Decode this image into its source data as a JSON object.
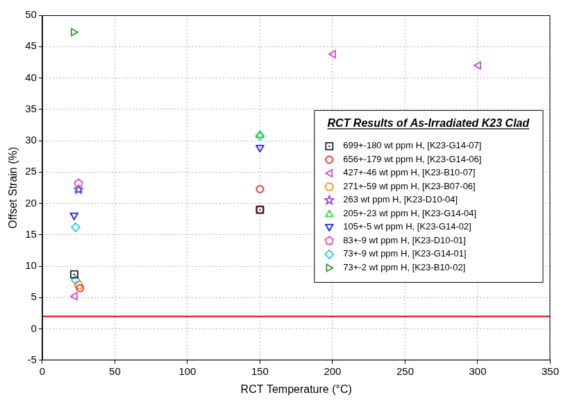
{
  "chart_data": {
    "type": "scatter",
    "x_label": "RCT Temperature (°C)",
    "y_label": "Offset Strain (%)",
    "xlim": [
      0,
      350
    ],
    "xticks": [
      0,
      50,
      100,
      150,
      200,
      250,
      300,
      350
    ],
    "ylim": [
      -5,
      50
    ],
    "yticks": [
      -5,
      0,
      5,
      10,
      15,
      20,
      25,
      30,
      35,
      40,
      45,
      50
    ],
    "grid": true,
    "legend": "right",
    "legend_title": "RCT Results of As-Irradiated K23 Clad",
    "reference_line": {
      "y": 2,
      "color": "#e00000"
    },
    "series": [
      {
        "name": "699+-180 wt ppm H, [K23-G14-07]",
        "color": "#000000",
        "marker": "square",
        "x": [
          22,
          150
        ],
        "values": [
          8.7,
          19.0
        ]
      },
      {
        "name": "656+-179 wt ppm H, [K23-G14-06]",
        "color": "#e00000",
        "marker": "circle",
        "x": [
          26,
          150,
          150
        ],
        "values": [
          6.5,
          22.3,
          19.0
        ]
      },
      {
        "name": "427+-46 wt ppm H, [K23-B10-07]",
        "color": "#cc33cc",
        "marker": "triangle-left",
        "x": [
          22,
          200,
          300
        ],
        "values": [
          5.2,
          43.8,
          42.0
        ]
      },
      {
        "name": "271+-59 wt ppm H, [K23-B07-06]",
        "color": "#ff8000",
        "marker": "hexagon",
        "x": [
          25
        ],
        "values": [
          7.0
        ]
      },
      {
        "name": "263 wt ppm H, [K23-D10-04]",
        "color": "#8a2be2",
        "marker": "star",
        "x": [
          25
        ],
        "values": [
          22.2
        ]
      },
      {
        "name": "205+-23 wt ppm H, [K23-G14-04]",
        "color": "#22cc22",
        "marker": "triangle-up",
        "x": [
          25,
          150
        ],
        "values": [
          22.3,
          31.0
        ]
      },
      {
        "name": "105+-5 wt ppm H, [K23-G14-02]",
        "color": "#0000ee",
        "marker": "triangle-down",
        "x": [
          22,
          150
        ],
        "values": [
          18.0,
          28.8
        ]
      },
      {
        "name": "83+-9 wt ppm H, [K23-D10-01]",
        "color": "#e0309f",
        "marker": "pentagon",
        "x": [
          25
        ],
        "values": [
          23.2
        ]
      },
      {
        "name": "73+-9 wt ppm H, [K23-G14-01]",
        "color": "#00c8d8",
        "marker": "diamond",
        "x": [
          23,
          150,
          23
        ],
        "values": [
          16.2,
          30.8,
          7.8
        ]
      },
      {
        "name": "73+-2 wt ppm H, [K23-B10-02]",
        "color": "#1a8a1a",
        "marker": "triangle-right",
        "x": [
          22
        ],
        "values": [
          47.3
        ]
      }
    ]
  }
}
